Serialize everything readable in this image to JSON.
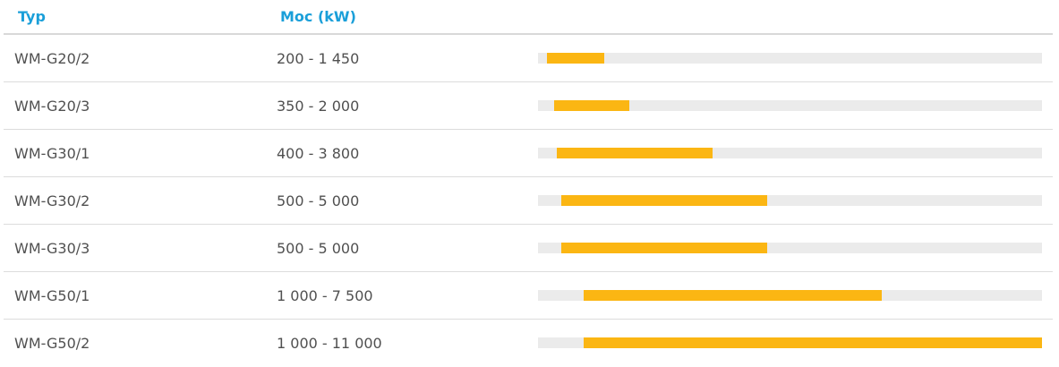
{
  "header": {
    "col_type": "Typ",
    "col_power": "Moc (kW)"
  },
  "rows": [
    {
      "type": "WM-G20/2",
      "range": "200 - 1 450"
    },
    {
      "type": "WM-G20/3",
      "range": "350 - 2 000"
    },
    {
      "type": "WM-G30/1",
      "range": "400 - 3 800"
    },
    {
      "type": "WM-G30/2",
      "range": "500 - 5 000"
    },
    {
      "type": "WM-G30/3",
      "range": "500 - 5 000"
    },
    {
      "type": "WM-G50/1",
      "range": "1 000 - 7 500"
    },
    {
      "type": "WM-G50/2",
      "range": "1 000 - 11 000"
    }
  ],
  "chart_data": {
    "type": "bar",
    "orientation": "horizontal",
    "subtype": "range",
    "categories": [
      "WM-G20/2",
      "WM-G20/3",
      "WM-G30/1",
      "WM-G30/2",
      "WM-G30/3",
      "WM-G50/1",
      "WM-G50/2"
    ],
    "min": [
      200,
      350,
      400,
      500,
      500,
      1000,
      1000
    ],
    "max": [
      1450,
      2000,
      3800,
      5000,
      5000,
      7500,
      11000
    ],
    "xlim": [
      0,
      11000
    ],
    "colors": {
      "bar": "#fbb613",
      "track": "#ebebeb",
      "header": "#1a9fd9"
    }
  }
}
